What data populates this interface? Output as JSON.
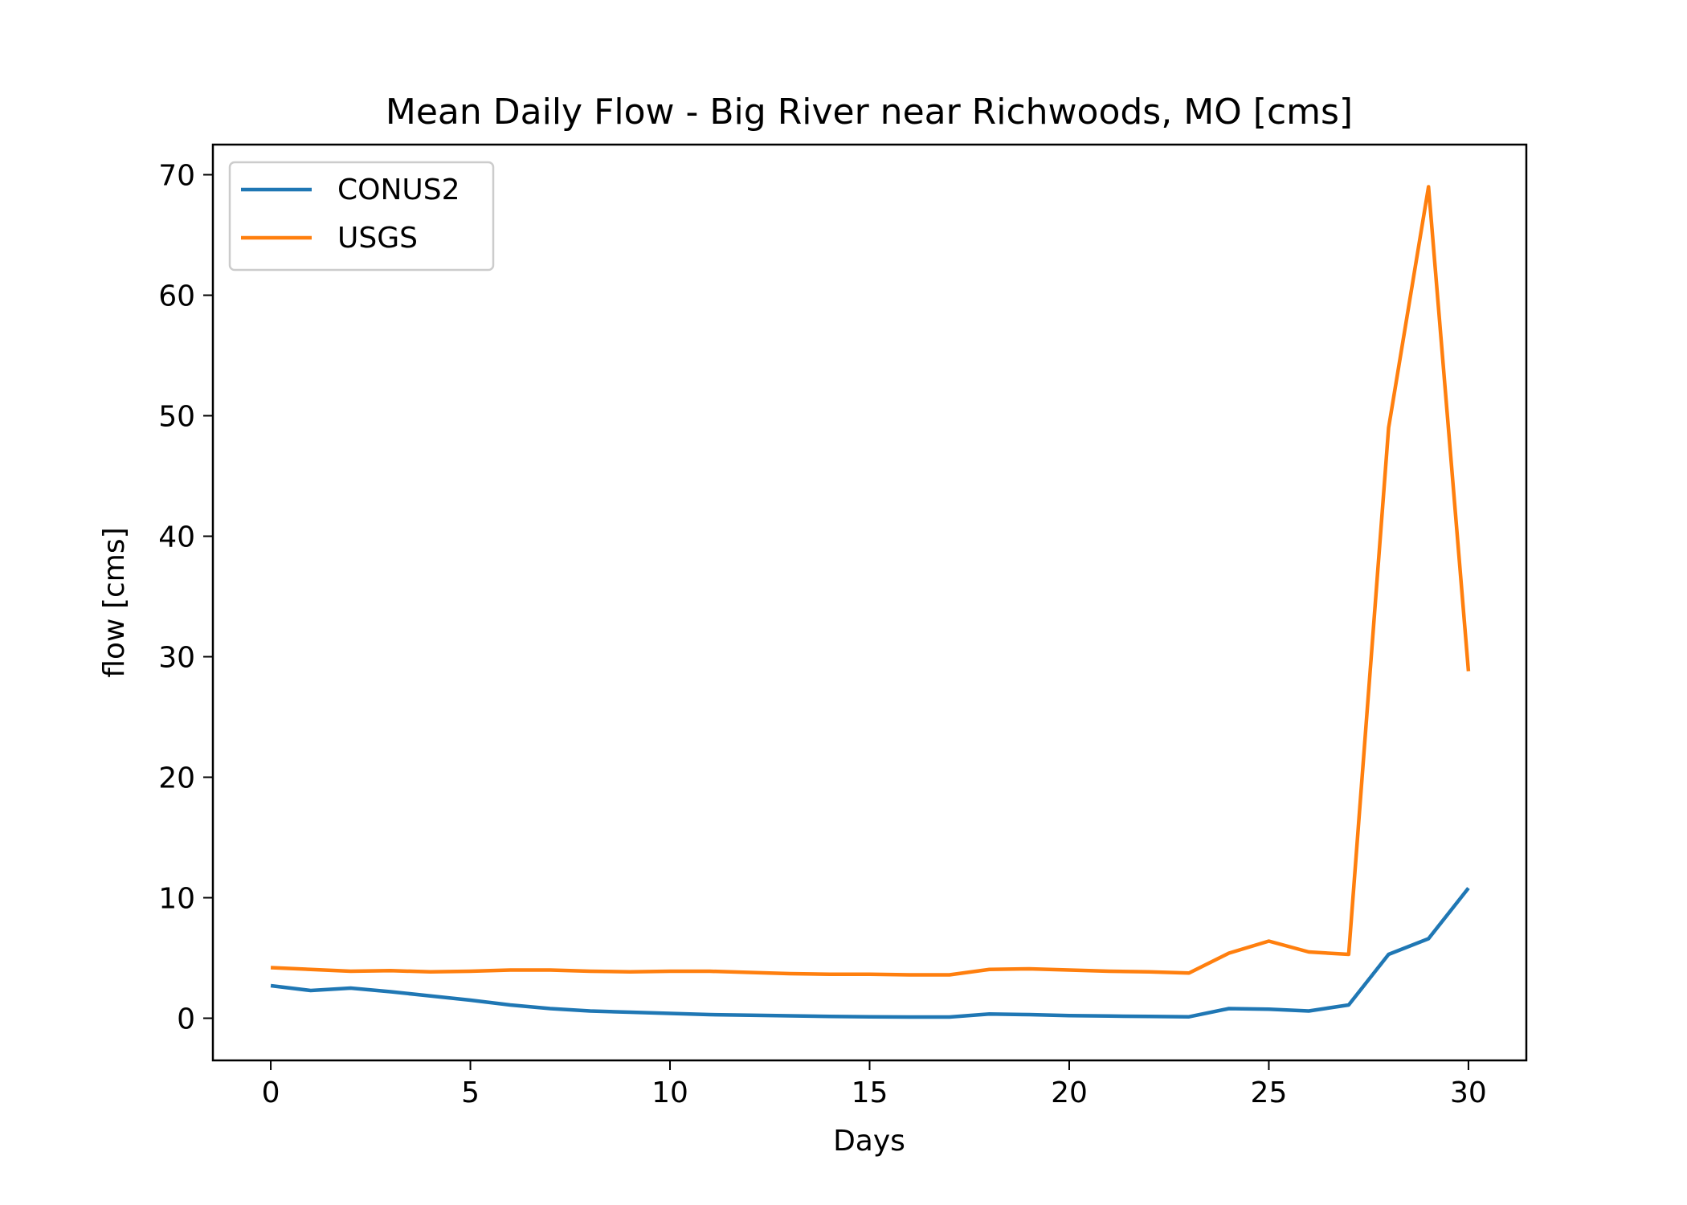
{
  "chart_data": {
    "type": "line",
    "title": "Mean Daily Flow - Big River near Richwoods, MO [cms]",
    "xlabel": "Days",
    "ylabel": "flow [cms]",
    "xlim": [
      -1.45,
      31.45
    ],
    "ylim": [
      -3.5,
      72.5
    ],
    "xticks": [
      0,
      5,
      10,
      15,
      20,
      25,
      30
    ],
    "yticks": [
      0,
      10,
      20,
      30,
      40,
      50,
      60,
      70
    ],
    "x": [
      0,
      1,
      2,
      3,
      4,
      5,
      6,
      7,
      8,
      9,
      10,
      11,
      12,
      13,
      14,
      15,
      16,
      17,
      18,
      19,
      20,
      21,
      22,
      23,
      24,
      25,
      26,
      27,
      28,
      29,
      30
    ],
    "legend_position": "upper-left",
    "grid": false,
    "series": [
      {
        "name": "CONUS2",
        "color": "#1f77b4",
        "values": [
          2.7,
          2.3,
          2.5,
          2.2,
          1.85,
          1.5,
          1.1,
          0.8,
          0.6,
          0.5,
          0.4,
          0.3,
          0.25,
          0.2,
          0.15,
          0.12,
          0.1,
          0.1,
          0.35,
          0.3,
          0.22,
          0.18,
          0.15,
          0.12,
          0.8,
          0.75,
          0.6,
          1.1,
          5.3,
          6.6,
          10.8
        ]
      },
      {
        "name": "USGS",
        "color": "#ff7f0e",
        "values": [
          4.2,
          4.05,
          3.9,
          3.95,
          3.85,
          3.9,
          4.0,
          4.0,
          3.9,
          3.85,
          3.9,
          3.9,
          3.8,
          3.7,
          3.65,
          3.65,
          3.6,
          3.6,
          4.05,
          4.1,
          4.0,
          3.9,
          3.85,
          3.75,
          5.4,
          6.4,
          5.5,
          5.3,
          49.0,
          69.0,
          28.8
        ]
      }
    ]
  }
}
